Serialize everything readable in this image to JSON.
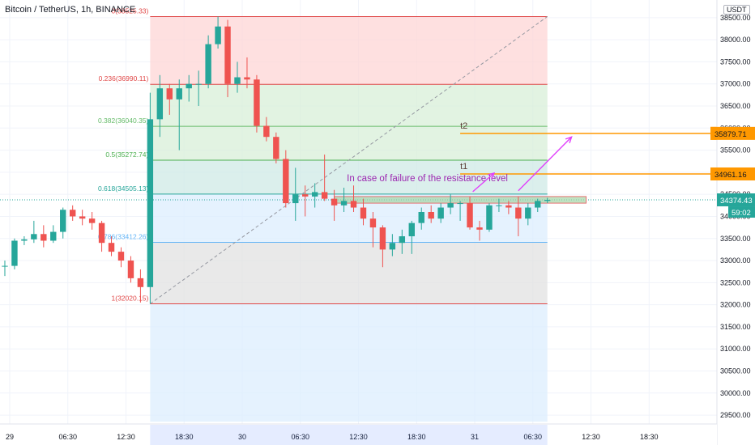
{
  "header": {
    "title": "Bitcoin / TetherUS, 1h, BINANCE",
    "currency": "USDT"
  },
  "chart_data": {
    "type": "candlestick",
    "symbol": "Bitcoin / TetherUS",
    "interval": "1h",
    "exchange": "BINANCE",
    "yaxis": {
      "ticks": [
        "38500.00",
        "38000.00",
        "37500.00",
        "37000.00",
        "36500.00",
        "36000.00",
        "35500.00",
        "35000.00",
        "34500.00",
        "34000.00",
        "33500.00",
        "33000.00",
        "32500.00",
        "32000.00",
        "31500.00",
        "31000.00",
        "30500.00",
        "30000.00",
        "29500.00"
      ],
      "range": [
        29300,
        38900
      ]
    },
    "xaxis": {
      "ticks": [
        "29",
        "06:30",
        "12:30",
        "18:30",
        "30",
        "06:30",
        "12:30",
        "18:30",
        "31",
        "06:30",
        "12:30",
        "18:30"
      ],
      "range": [
        -0.5,
        73.5
      ]
    },
    "candles": [
      {
        "i": 0,
        "o": 32880,
        "h": 33000,
        "l": 32650,
        "c": 32880
      },
      {
        "i": 1,
        "o": 32880,
        "h": 33500,
        "l": 32800,
        "c": 33450
      },
      {
        "i": 2,
        "o": 33450,
        "h": 33550,
        "l": 33350,
        "c": 33480
      },
      {
        "i": 3,
        "o": 33480,
        "h": 33900,
        "l": 33400,
        "c": 33600
      },
      {
        "i": 4,
        "o": 33600,
        "h": 33800,
        "l": 33300,
        "c": 33450
      },
      {
        "i": 5,
        "o": 33450,
        "h": 33800,
        "l": 33400,
        "c": 33650
      },
      {
        "i": 6,
        "o": 33650,
        "h": 34200,
        "l": 33500,
        "c": 34150
      },
      {
        "i": 7,
        "o": 34150,
        "h": 34250,
        "l": 33900,
        "c": 34000
      },
      {
        "i": 8,
        "o": 34000,
        "h": 34150,
        "l": 33800,
        "c": 33950
      },
      {
        "i": 9,
        "o": 33950,
        "h": 34100,
        "l": 33700,
        "c": 33850
      },
      {
        "i": 10,
        "o": 33850,
        "h": 33900,
        "l": 33200,
        "c": 33400
      },
      {
        "i": 11,
        "o": 33400,
        "h": 33550,
        "l": 33100,
        "c": 33200
      },
      {
        "i": 12,
        "o": 33200,
        "h": 33300,
        "l": 32850,
        "c": 33000
      },
      {
        "i": 13,
        "o": 33000,
        "h": 33100,
        "l": 32500,
        "c": 32600
      },
      {
        "i": 14,
        "o": 32600,
        "h": 32800,
        "l": 32050,
        "c": 32400
      },
      {
        "i": 15,
        "o": 32400,
        "h": 36800,
        "l": 32020,
        "c": 36200
      },
      {
        "i": 16,
        "o": 36200,
        "h": 37200,
        "l": 35800,
        "c": 36900
      },
      {
        "i": 17,
        "o": 36900,
        "h": 37000,
        "l": 36300,
        "c": 36650
      },
      {
        "i": 18,
        "o": 36650,
        "h": 37100,
        "l": 35500,
        "c": 36900
      },
      {
        "i": 19,
        "o": 36900,
        "h": 37200,
        "l": 36600,
        "c": 37000
      },
      {
        "i": 20,
        "o": 37000,
        "h": 37300,
        "l": 36500,
        "c": 37000
      },
      {
        "i": 21,
        "o": 37000,
        "h": 38100,
        "l": 36900,
        "c": 37900
      },
      {
        "i": 22,
        "o": 37900,
        "h": 38525,
        "l": 37800,
        "c": 38300
      },
      {
        "i": 23,
        "o": 38300,
        "h": 38450,
        "l": 36700,
        "c": 37000
      },
      {
        "i": 24,
        "o": 37000,
        "h": 37500,
        "l": 36800,
        "c": 37150
      },
      {
        "i": 25,
        "o": 37150,
        "h": 37600,
        "l": 36900,
        "c": 37100
      },
      {
        "i": 26,
        "o": 37100,
        "h": 37200,
        "l": 35900,
        "c": 36050
      },
      {
        "i": 27,
        "o": 36050,
        "h": 36250,
        "l": 35700,
        "c": 35800
      },
      {
        "i": 28,
        "o": 35800,
        "h": 35900,
        "l": 35200,
        "c": 35300
      },
      {
        "i": 29,
        "o": 35300,
        "h": 35500,
        "l": 34200,
        "c": 34300
      },
      {
        "i": 30,
        "o": 34300,
        "h": 35100,
        "l": 33900,
        "c": 34500
      },
      {
        "i": 31,
        "o": 34500,
        "h": 34700,
        "l": 34000,
        "c": 34450
      },
      {
        "i": 32,
        "o": 34450,
        "h": 34750,
        "l": 34200,
        "c": 34550
      },
      {
        "i": 33,
        "o": 34550,
        "h": 35400,
        "l": 34350,
        "c": 34400
      },
      {
        "i": 34,
        "o": 34400,
        "h": 34600,
        "l": 33900,
        "c": 34250
      },
      {
        "i": 35,
        "o": 34250,
        "h": 34650,
        "l": 34100,
        "c": 34350
      },
      {
        "i": 36,
        "o": 34350,
        "h": 34700,
        "l": 34100,
        "c": 34200
      },
      {
        "i": 37,
        "o": 34200,
        "h": 34400,
        "l": 33800,
        "c": 33950
      },
      {
        "i": 38,
        "o": 33950,
        "h": 34100,
        "l": 33300,
        "c": 33750
      },
      {
        "i": 39,
        "o": 33750,
        "h": 33800,
        "l": 32850,
        "c": 33250
      },
      {
        "i": 40,
        "o": 33250,
        "h": 33600,
        "l": 33100,
        "c": 33400
      },
      {
        "i": 41,
        "o": 33400,
        "h": 33700,
        "l": 33150,
        "c": 33550
      },
      {
        "i": 42,
        "o": 33550,
        "h": 33900,
        "l": 33150,
        "c": 33850
      },
      {
        "i": 43,
        "o": 33850,
        "h": 34200,
        "l": 33700,
        "c": 34100
      },
      {
        "i": 44,
        "o": 34100,
        "h": 34250,
        "l": 33850,
        "c": 33950
      },
      {
        "i": 45,
        "o": 33950,
        "h": 34300,
        "l": 33850,
        "c": 34200
      },
      {
        "i": 46,
        "o": 34200,
        "h": 34500,
        "l": 34050,
        "c": 34300
      },
      {
        "i": 47,
        "o": 34300,
        "h": 34350,
        "l": 33900,
        "c": 34300
      },
      {
        "i": 48,
        "o": 34300,
        "h": 34450,
        "l": 33700,
        "c": 33750
      },
      {
        "i": 49,
        "o": 33750,
        "h": 33900,
        "l": 33450,
        "c": 33700
      },
      {
        "i": 50,
        "o": 33700,
        "h": 34300,
        "l": 33650,
        "c": 34250
      },
      {
        "i": 51,
        "o": 34250,
        "h": 34400,
        "l": 34100,
        "c": 34250
      },
      {
        "i": 52,
        "o": 34250,
        "h": 34350,
        "l": 34050,
        "c": 34200
      },
      {
        "i": 53,
        "o": 34200,
        "h": 34450,
        "l": 33550,
        "c": 33950
      },
      {
        "i": 54,
        "o": 33950,
        "h": 34300,
        "l": 33800,
        "c": 34200
      },
      {
        "i": 55,
        "o": 34200,
        "h": 34400,
        "l": 34100,
        "c": 34350
      },
      {
        "i": 56,
        "o": 34350,
        "h": 34420,
        "l": 34300,
        "c": 34374
      }
    ],
    "fibonacci": {
      "levels": [
        {
          "ratio": "0",
          "value": 38525.33,
          "label": "0(38525.33)",
          "line": "#e04848",
          "fill": "#fdd5d5"
        },
        {
          "ratio": "0.236",
          "value": 36990.11,
          "label": "0.236(36990.11)",
          "line": "#e04848",
          "fill": "#d8efd8"
        },
        {
          "ratio": "0.382",
          "value": 36040.35,
          "label": "0.382(36040.35)",
          "line": "#66bb6a",
          "fill": "#d8efd8"
        },
        {
          "ratio": "0.5",
          "value": 35272.74,
          "label": "0.5(35272.74)",
          "line": "#4caf50",
          "fill": "#cfe9e6"
        },
        {
          "ratio": "0.618",
          "value": 34505.13,
          "label": "0.618(34505.13)",
          "line": "#26a69a",
          "fill": "#dceefe"
        },
        {
          "ratio": "0.786",
          "value": 33412.26,
          "label": "0.786(33412.26)",
          "line": "#64b5f6",
          "fill": "#e1e1e1"
        },
        {
          "ratio": "1",
          "value": 32020.15,
          "label": "1(32020.15)",
          "line": "#e04848",
          "fill": "#dceefe"
        }
      ],
      "x_range": [
        15,
        56
      ],
      "bottom_extension": 29350
    },
    "targets": [
      {
        "name": "t2",
        "value": 35879.71,
        "label": "35879.71",
        "color": "#ff9800"
      },
      {
        "name": "t1",
        "value": 34961.16,
        "label": "34961.16",
        "color": "#ff9800"
      }
    ],
    "annotation": {
      "text": "In case of failure of the resistance level",
      "color": "#9c27b0",
      "zone": {
        "x0": 34,
        "x1": 60,
        "y0": 34300,
        "y1": 34450
      }
    },
    "current_price": {
      "value": 34374.43,
      "label": "34374.43",
      "countdown": "59:02",
      "color": "#26a69a"
    },
    "colors": {
      "up": "#26a69a",
      "down": "#ef5350",
      "arrow": "#e040fb",
      "grid": "#f0f3fa"
    }
  }
}
